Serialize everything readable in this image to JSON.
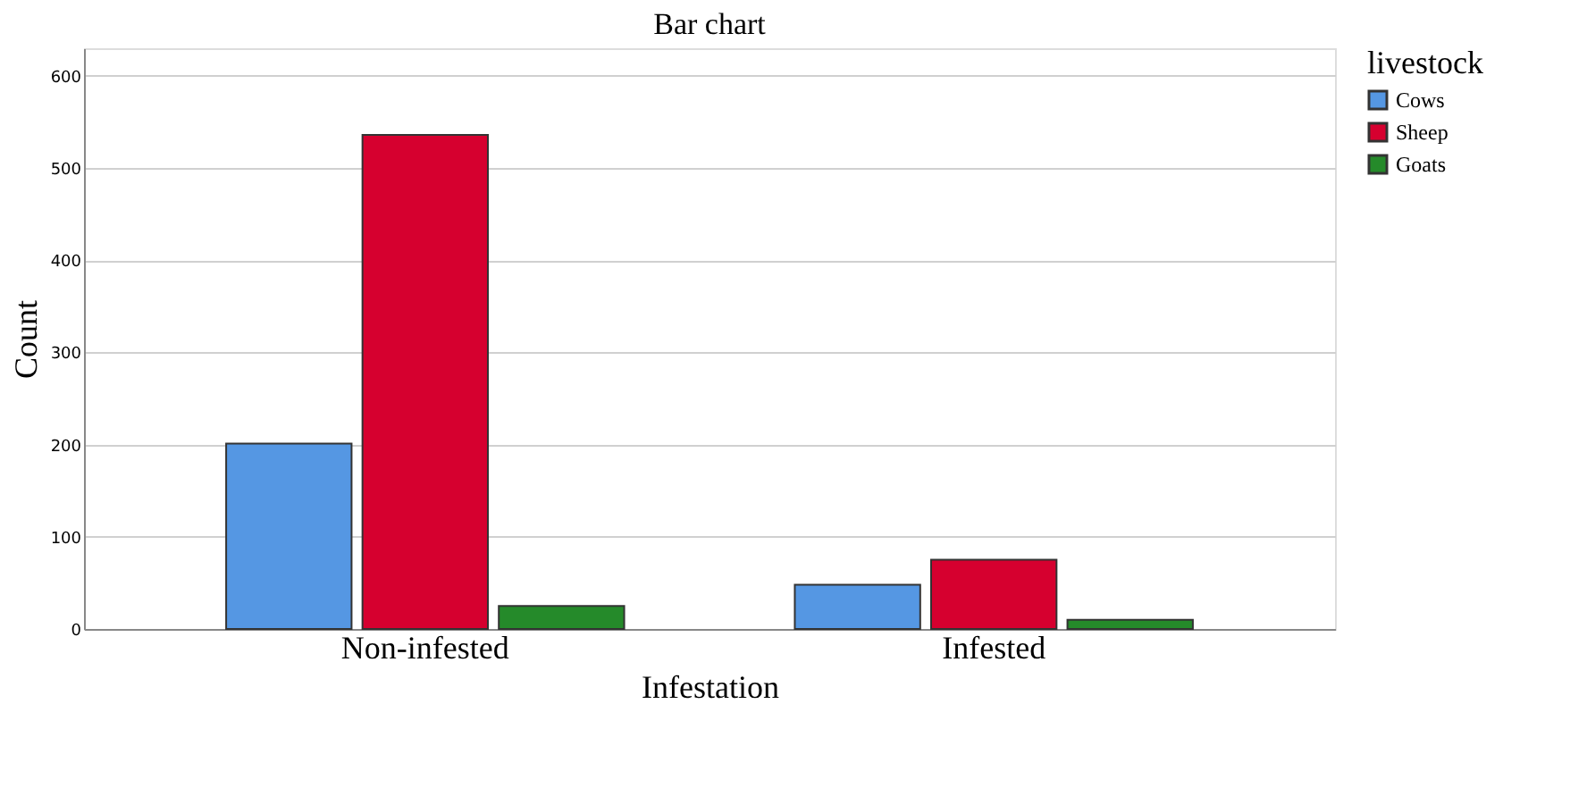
{
  "chart_data": {
    "type": "bar",
    "title": "Bar chart",
    "xlabel": "Infestation",
    "ylabel": "Count",
    "legend_title": "livestock",
    "categories": [
      "Non-infested",
      "Infested"
    ],
    "series": [
      {
        "name": "Cows",
        "color": "#5597e3",
        "values": [
          201,
          48
        ]
      },
      {
        "name": "Sheep",
        "color": "#d6002f",
        "values": [
          536,
          75
        ]
      },
      {
        "name": "Goats",
        "color": "#258a2a",
        "values": [
          25,
          10
        ]
      }
    ],
    "ylim": [
      0,
      630
    ],
    "yticks": [
      0,
      100,
      200,
      300,
      400,
      500,
      600
    ],
    "grid": "y",
    "legend": "top right"
  }
}
